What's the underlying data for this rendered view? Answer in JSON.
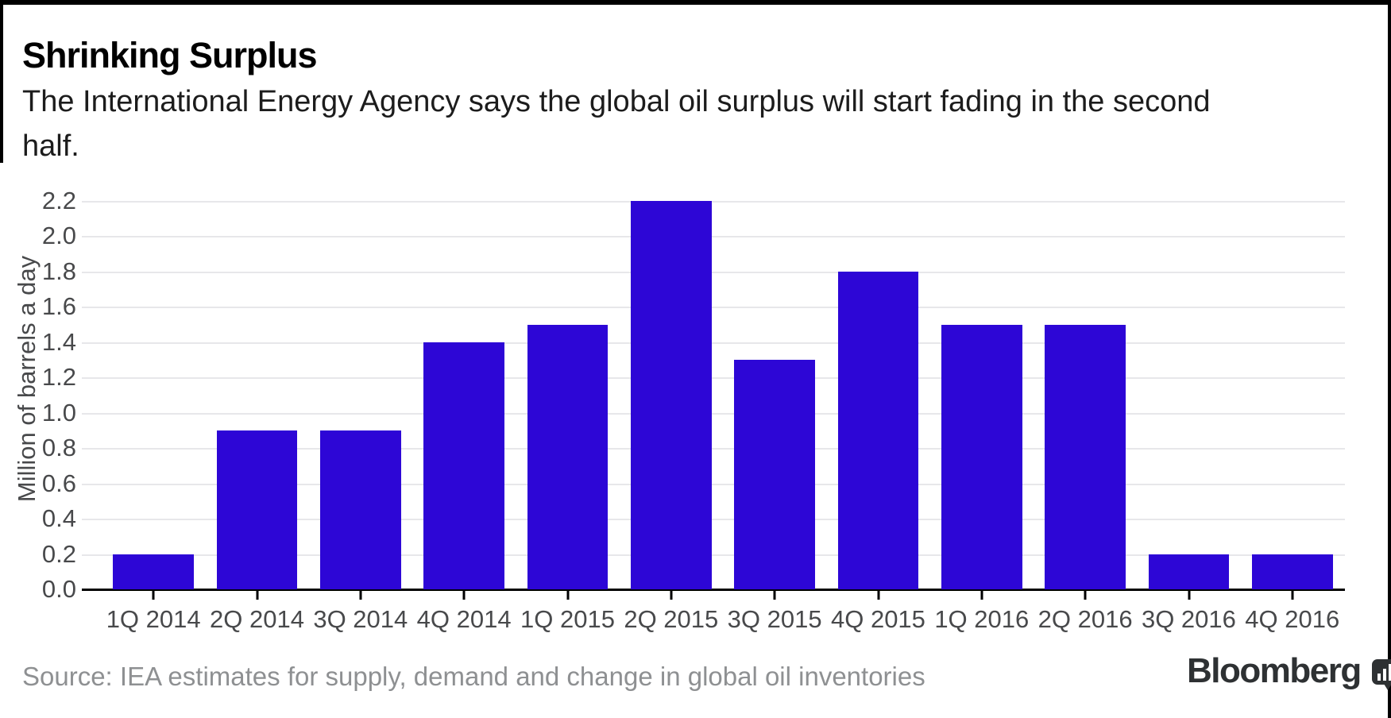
{
  "header": {
    "title": "Shrinking Surplus",
    "subtitle": "The International Energy Agency says the global oil surplus will start fading in the second half.",
    "subtitle_lines": [
      "The International Energy Agency says the global oil surplus will start fading in the second",
      "half."
    ]
  },
  "chart_data": {
    "type": "bar",
    "title": "Shrinking Surplus",
    "categories": [
      "1Q 2014",
      "2Q 2014",
      "3Q 2014",
      "4Q 2014",
      "1Q 2015",
      "2Q 2015",
      "3Q 2015",
      "4Q 2015",
      "1Q 2016",
      "2Q 2016",
      "3Q 2016",
      "4Q 2016"
    ],
    "values": [
      0.2,
      0.9,
      0.9,
      1.4,
      1.5,
      2.2,
      1.3,
      1.8,
      1.5,
      1.5,
      0.2,
      0.2
    ],
    "xlabel": "",
    "ylabel": "Million of barrels a day",
    "ylim": [
      0,
      2.2
    ],
    "ytick_step": 0.2,
    "yticks": [
      "2.2",
      "2.0",
      "1.8",
      "1.6",
      "1.4",
      "1.2",
      "1.0",
      "0.8",
      "0.6",
      "0.4",
      "0.2",
      "0.0"
    ],
    "grid": "horizontal",
    "legend": "none",
    "colors": {
      "bar": "#2d06d6",
      "grid": "#e7e7ea",
      "axis_text": "#48494b",
      "title_text": "#000000",
      "source_text": "#8e9092",
      "brand": "#2e3133"
    }
  },
  "footer": {
    "source": "Source: IEA estimates for supply, demand and change in global oil inventories",
    "brand": "Bloomberg",
    "brand_icon": "bar-chart-bubble-icon"
  }
}
